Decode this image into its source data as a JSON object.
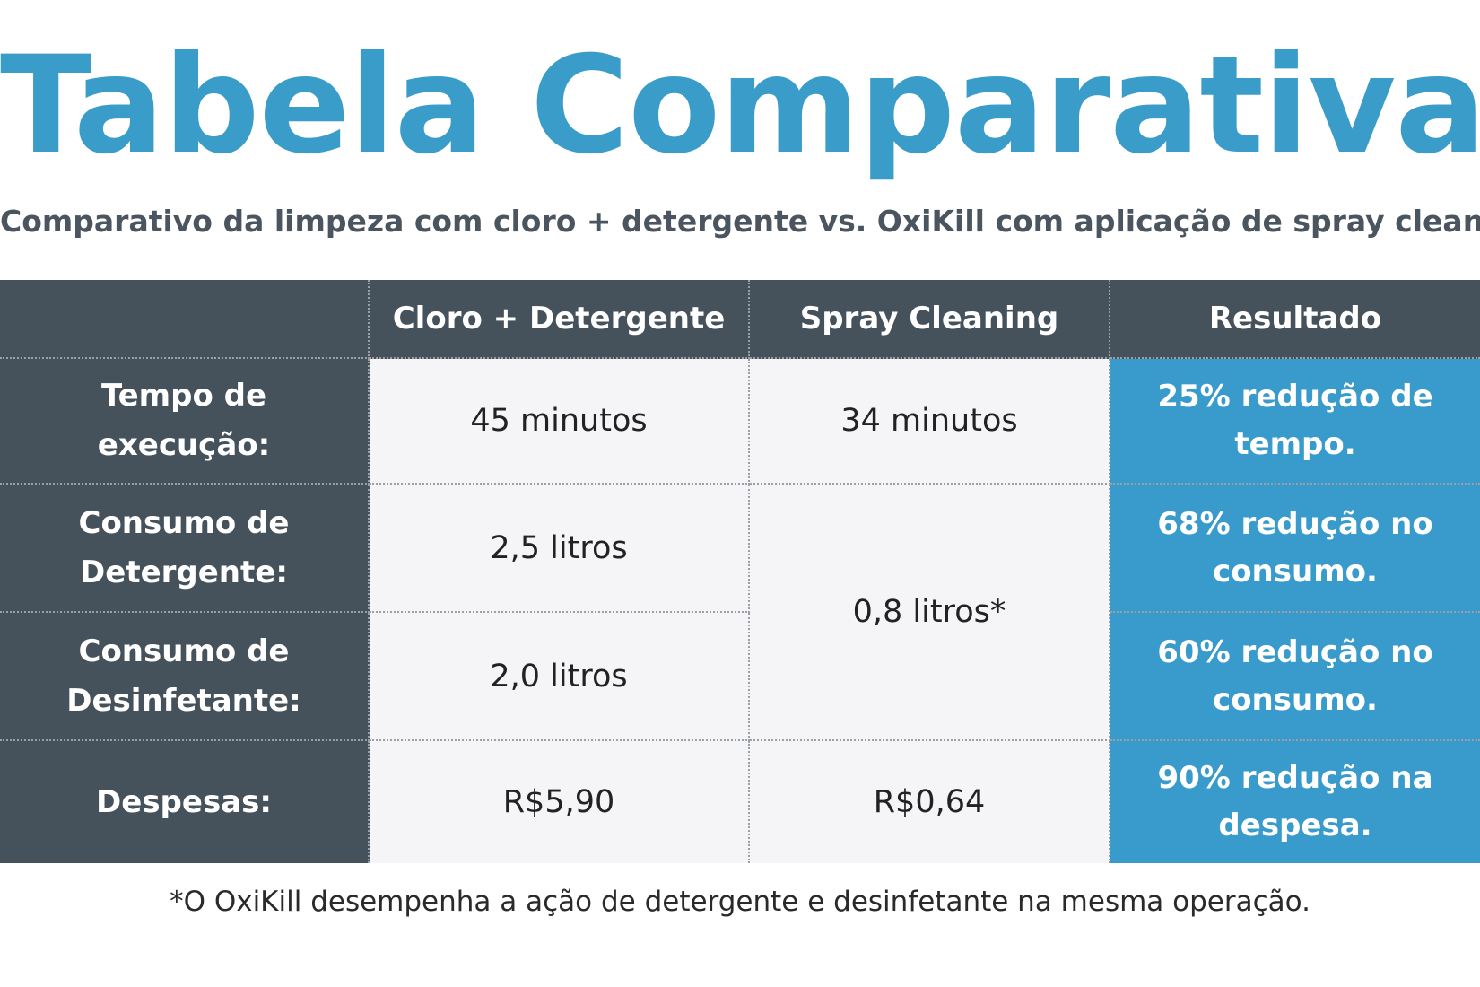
{
  "title": "Tabela Comparativa.",
  "subtitle": "Comparativo da limpeza com cloro + detergente vs. OxiKill com aplicação de spray cleaning.",
  "table": {
    "headers": [
      "",
      "Cloro + Detergente",
      "Spray Cleaning",
      "Resultado"
    ],
    "rows": [
      {
        "label": [
          "Tempo de execução:"
        ],
        "cloro": "45 minutos",
        "spray": "34 minutos",
        "result": [
          "25% redução de",
          "tempo."
        ]
      },
      {
        "label": [
          "Consumo de",
          "Detergente:"
        ],
        "cloro": "2,5 litros",
        "spray": "0,8 litros*",
        "result": [
          "68% redução no",
          "consumo."
        ]
      },
      {
        "label": [
          "Consumo de",
          "Desinfetante:"
        ],
        "cloro": "2,0 litros",
        "result": [
          "60% redução no",
          "consumo."
        ]
      },
      {
        "label": [
          "Despesas:"
        ],
        "cloro": "R$5,90",
        "spray": "R$0,64",
        "result": [
          "90% redução na",
          "despesa."
        ]
      }
    ]
  },
  "footnote": "*O OxiKill desempenha a ação de detergente e desinfetante na mesma operação.",
  "colors": {
    "accent": "#3a9dc9",
    "dark_cell": "#46525b",
    "light_cell": "#f5f5f7",
    "result_cell": "#399bcc",
    "subtitle_text": "#4a5560"
  }
}
